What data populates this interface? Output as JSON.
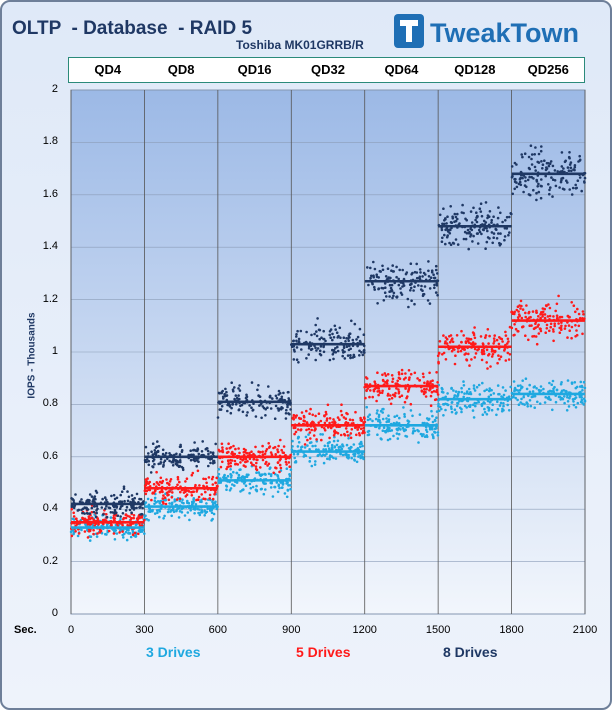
{
  "title": "OLTP  - Database  - RAID 5",
  "subtitle": "Toshiba MK01GRRB/R",
  "logo_text": "TweakTown",
  "chart_data": {
    "type": "scatter",
    "title": "OLTP  - Database  - RAID 5",
    "subtitle": "Toshiba MK01GRRB/R",
    "xlabel": "Sec.",
    "ylabel": "IOPS - Thousands",
    "xlim": [
      0,
      2100
    ],
    "ylim": [
      0,
      2
    ],
    "xticks": [
      0,
      300,
      600,
      900,
      1200,
      1500,
      1800,
      2100
    ],
    "yticks": [
      0,
      0.2,
      0.4,
      0.6,
      0.8,
      1,
      1.2,
      1.4,
      1.6,
      1.8,
      2
    ],
    "ytick_labels": [
      "0",
      "0.2",
      "0.4",
      "0.6",
      "0.8",
      "1",
      "1.2",
      "1.4",
      "1.6",
      "1.8",
      "2"
    ],
    "xtick_labels": [
      "0",
      "300",
      "600",
      "900",
      "1200",
      "1500",
      "1800",
      "2100"
    ],
    "grid": true,
    "segments": [
      "QD4",
      "QD8",
      "QD16",
      "QD32",
      "QD64",
      "QD128",
      "QD256"
    ],
    "segment_width": 300,
    "series": [
      {
        "name": "3 Drives",
        "color": "#1fa8e0",
        "means": [
          0.33,
          0.41,
          0.51,
          0.62,
          0.72,
          0.82,
          0.84
        ]
      },
      {
        "name": "5 Drives",
        "color": "#ff1a1a",
        "means": [
          0.35,
          0.48,
          0.6,
          0.72,
          0.87,
          1.02,
          1.12
        ]
      },
      {
        "name": "8 Drives",
        "color": "#1f3864",
        "means": [
          0.42,
          0.6,
          0.81,
          1.03,
          1.27,
          1.48,
          1.68
        ]
      }
    ],
    "legend_position": "bottom",
    "background_color": "#aec6ea"
  }
}
